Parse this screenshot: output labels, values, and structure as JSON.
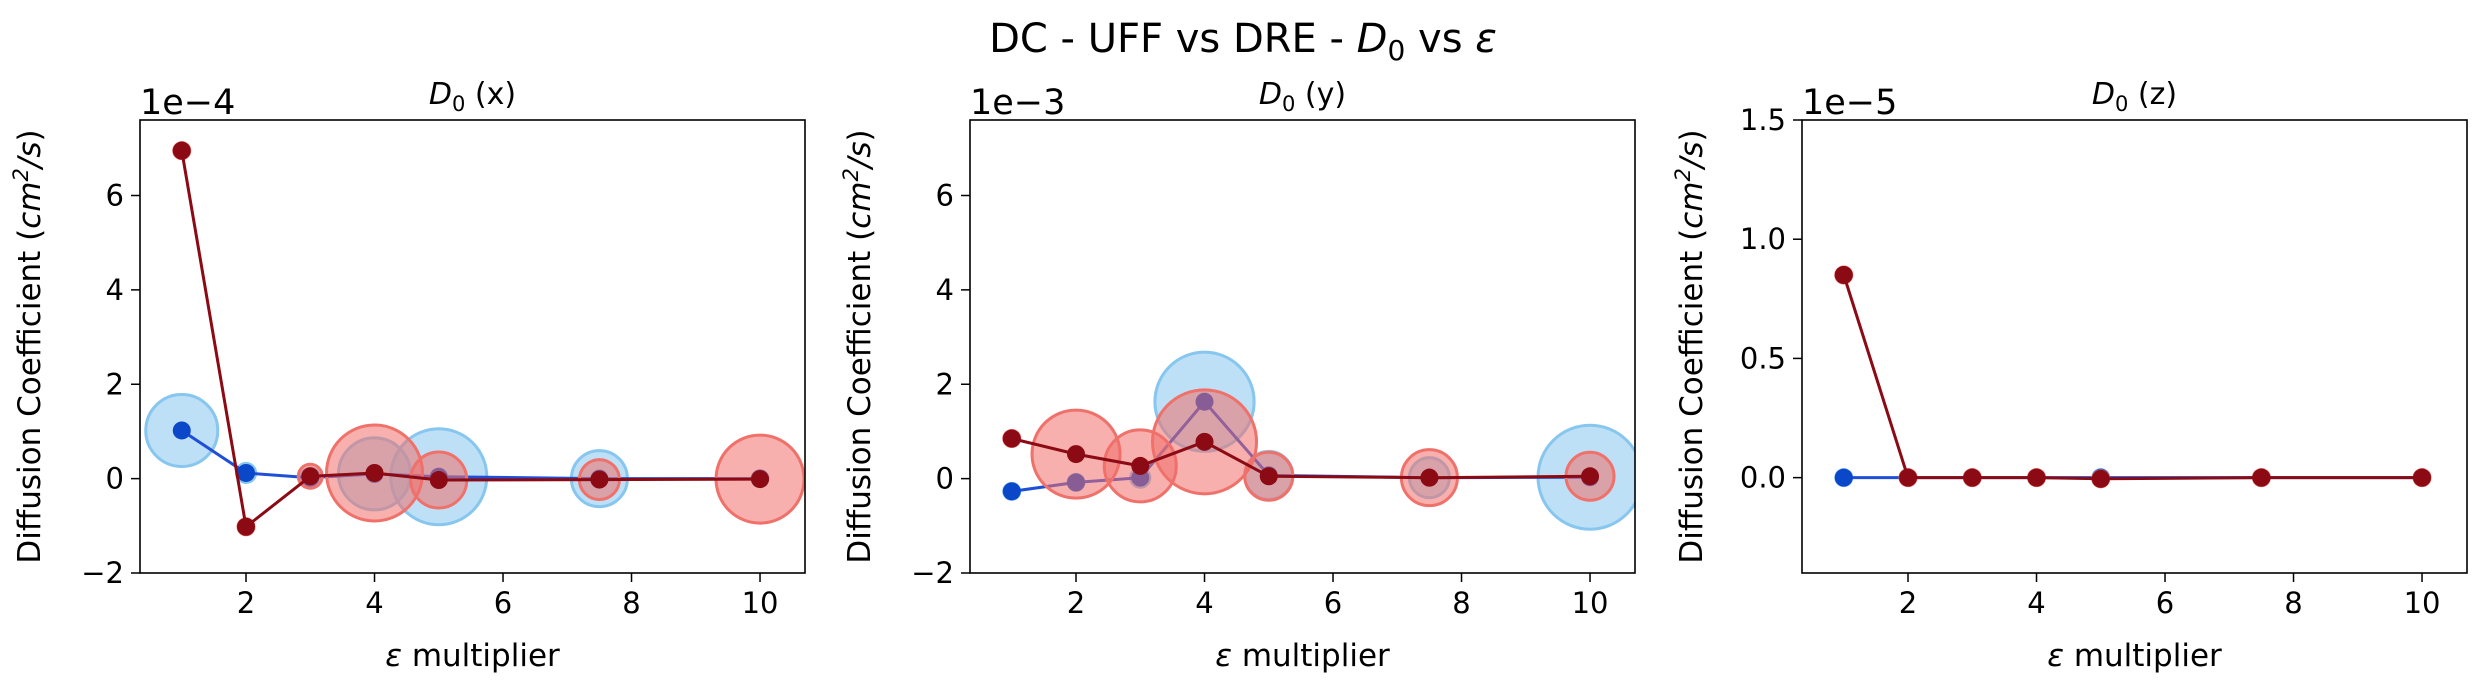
{
  "figure": {
    "suptitle_prefix": "DC - UFF vs DRE - ",
    "suptitle_sym": "D",
    "suptitle_sub": "0",
    "suptitle_mid": " vs ",
    "suptitle_eps": "ε"
  },
  "colors": {
    "uff_line": "#1f4fd6",
    "uff_marker": "#0b47c9",
    "uff_halo": "#87c6ef",
    "dre_line": "#8b0a14",
    "dre_marker": "#8b0a14",
    "dre_halo": "#f0706a"
  },
  "chart_data": [
    {
      "type": "scatter",
      "title_sym": "D",
      "title_sub": "0",
      "title_axis": " (x)",
      "xlabel_sym": "ε",
      "xlabel_text": " multiplier",
      "ylabel_text": "Diffusion Coefficient (",
      "ylabel_unit_main": "cm",
      "ylabel_unit_sup": "2",
      "ylabel_unit_tail": "/s",
      "ylabel_close": ")",
      "offset_label": "1e−4",
      "xlim": [
        0.35,
        10.7
      ],
      "ylim": [
        -2,
        7.6
      ],
      "xticks": [
        2,
        4,
        6,
        8,
        10
      ],
      "xtick_labels": [
        "2",
        "4",
        "6",
        "8",
        "10"
      ],
      "yticks": [
        -2,
        0,
        2,
        4,
        6
      ],
      "ytick_labels": [
        "−2",
        "0",
        "2",
        "4",
        "6"
      ],
      "x": [
        1,
        2,
        3,
        4,
        5,
        7.5,
        10
      ],
      "series": [
        {
          "key": "uff",
          "values": [
            1.02,
            0.12,
            0.02,
            0.1,
            0.04,
            0.0,
            0.0
          ],
          "err": [
            0.45,
            0.12,
            0.12,
            0.45,
            0.6,
            0.35,
            0.05
          ]
        },
        {
          "key": "dre",
          "values": [
            6.95,
            -1.02,
            0.05,
            0.12,
            -0.03,
            -0.02,
            -0.01
          ],
          "err": [
            0.05,
            0.1,
            0.15,
            0.6,
            0.35,
            0.25,
            0.55
          ]
        }
      ]
    },
    {
      "type": "scatter",
      "title_sym": "D",
      "title_sub": "0",
      "title_axis": " (y)",
      "xlabel_sym": "ε",
      "xlabel_text": " multiplier",
      "ylabel_text": "Diffusion Coefficient (",
      "ylabel_unit_main": "cm",
      "ylabel_unit_sup": "2",
      "ylabel_unit_tail": "/s",
      "ylabel_close": ")",
      "offset_label": "1e−3",
      "xlim": [
        0.35,
        10.7
      ],
      "ylim": [
        -2,
        7.6
      ],
      "xticks": [
        2,
        4,
        6,
        8,
        10
      ],
      "xtick_labels": [
        "2",
        "4",
        "6",
        "8",
        "10"
      ],
      "yticks": [
        -2,
        0,
        2,
        4,
        6
      ],
      "ytick_labels": [
        "−2",
        "0",
        "2",
        "4",
        "6"
      ],
      "x": [
        1,
        2,
        3,
        4,
        5,
        7.5,
        10
      ],
      "series": [
        {
          "key": "uff",
          "values": [
            -0.27,
            -0.08,
            0.02,
            1.63,
            0.07,
            0.02,
            0.03
          ],
          "err": [
            0.05,
            0.1,
            0.12,
            0.62,
            0.3,
            0.25,
            0.65
          ]
        },
        {
          "key": "dre",
          "values": [
            0.85,
            0.52,
            0.27,
            0.78,
            0.05,
            0.02,
            0.05
          ],
          "err": [
            0.1,
            0.55,
            0.45,
            0.65,
            0.3,
            0.35,
            0.3
          ]
        }
      ]
    },
    {
      "type": "scatter",
      "title_sym": "D",
      "title_sub": "0",
      "title_axis": " (z)",
      "xlabel_sym": "ε",
      "xlabel_text": " multiplier",
      "ylabel_text": "Diffusion Coefficient (",
      "ylabel_unit_main": "cm",
      "ylabel_unit_sup": "2",
      "ylabel_unit_tail": "/s",
      "ylabel_close": ")",
      "offset_label": "1e−5",
      "xlim": [
        0.35,
        10.7
      ],
      "ylim": [
        -0.4,
        1.5
      ],
      "xticks": [
        2,
        4,
        6,
        8,
        10
      ],
      "xtick_labels": [
        "2",
        "4",
        "6",
        "8",
        "10"
      ],
      "yticks": [
        0.0,
        0.5,
        1.0,
        1.5
      ],
      "ytick_labels": [
        "0.0",
        "0.5",
        "1.0",
        "1.5"
      ],
      "x": [
        1,
        2,
        3,
        4,
        5,
        7.5,
        10
      ],
      "series": [
        {
          "key": "uff",
          "values": [
            0.0,
            0.0,
            0.0,
            0.0,
            0.0,
            0.0,
            0.0
          ],
          "err": [
            0.015,
            0.02,
            0.02,
            0.07,
            0.06,
            0.03,
            0.04
          ]
        },
        {
          "key": "dre",
          "values": [
            0.85,
            0.0,
            0.0,
            0.0,
            -0.005,
            0.0,
            0.0
          ],
          "err": [
            0.04,
            0.015,
            0.015,
            0.01,
            0.01,
            0.015,
            0.01
          ]
        }
      ]
    }
  ]
}
